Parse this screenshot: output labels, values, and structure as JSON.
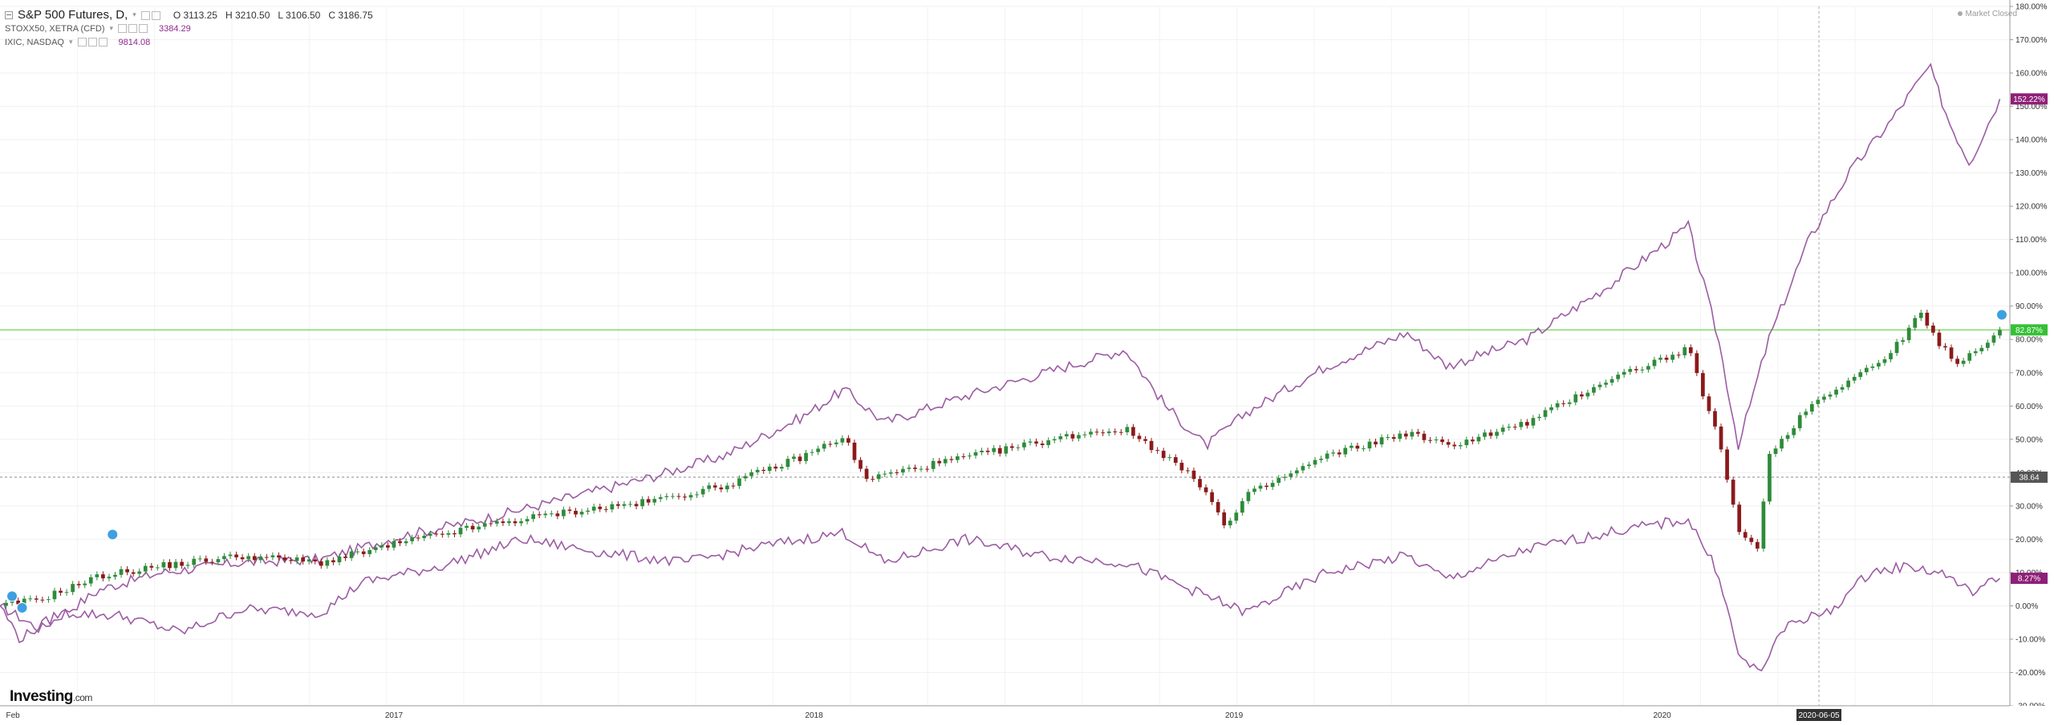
{
  "legend": {
    "main": {
      "symbol": "S&P 500 Futures, D,",
      "open": "O 3113.25",
      "high": "H 3210.50",
      "low": "L 3106.50",
      "close": "C 3186.75"
    },
    "overlays": [
      {
        "name": "STOXX50, XETRA (CFD)",
        "value": "3384.29"
      },
      {
        "name": "IXIC, NASDAQ",
        "value": "9814.08"
      }
    ]
  },
  "status": "Market Closed",
  "logo": {
    "brand": "Investing",
    "suffix": ".com"
  },
  "colors": {
    "purple": "#9c5ca3",
    "candle_up": "#2e8b3a",
    "candle_down": "#8b1a1a",
    "hline": "#7fdc6a",
    "badge_purple": "#8e1f78",
    "badge_green": "#35c135",
    "badge_gray": "#555555",
    "pin": "#3ea0e0"
  },
  "chart_data": {
    "type": "line",
    "title": "",
    "x_tick_labels": [
      "Feb",
      "2017",
      "2018",
      "2019",
      "2020"
    ],
    "x_range": [
      "2016-02",
      "2020-06"
    ],
    "y_range": [
      -30,
      180
    ],
    "y_ticks": [
      "180.00%",
      "170.00%",
      "160.00%",
      "150.00%",
      "140.00%",
      "130.00%",
      "120.00%",
      "110.00%",
      "100.00%",
      "90.00%",
      "80.00%",
      "70.00%",
      "60.00%",
      "50.00%",
      "40.00%",
      "30.00%",
      "20.00%",
      "10.00%",
      "0.00%",
      "-10.00%",
      "-20.00%",
      "-30.00%"
    ],
    "price_badges": [
      {
        "label": "152.22%",
        "value": 152.22,
        "color": "#8e1f78"
      },
      {
        "label": "82.87%",
        "value": 82.87,
        "color": "#35c135"
      },
      {
        "label": "38.64",
        "value": 38.64,
        "color": "#555555"
      },
      {
        "label": "8.27%",
        "value": 8.27,
        "color": "#8e1f78"
      }
    ],
    "crosshair_date_label": "2020-06-05",
    "grid": true,
    "series": [
      {
        "name": "IXIC, NASDAQ",
        "style": "line",
        "color": "#9c5ca3",
        "points": [
          [
            0,
            0
          ],
          [
            0.02,
            -7
          ],
          [
            0.05,
            5
          ],
          [
            0.08,
            10
          ],
          [
            0.12,
            13
          ],
          [
            0.16,
            14
          ],
          [
            0.2,
            21
          ],
          [
            0.24,
            26
          ],
          [
            0.28,
            32
          ],
          [
            0.32,
            38
          ],
          [
            0.36,
            45
          ],
          [
            0.4,
            57
          ],
          [
            0.42,
            65
          ],
          [
            0.44,
            55
          ],
          [
            0.48,
            63
          ],
          [
            0.52,
            70
          ],
          [
            0.56,
            77
          ],
          [
            0.58,
            60
          ],
          [
            0.6,
            48
          ],
          [
            0.62,
            58
          ],
          [
            0.66,
            72
          ],
          [
            0.7,
            82
          ],
          [
            0.72,
            72
          ],
          [
            0.76,
            80
          ],
          [
            0.8,
            96
          ],
          [
            0.84,
            114
          ],
          [
            0.855,
            80
          ],
          [
            0.865,
            48
          ],
          [
            0.88,
            80
          ],
          [
            0.9,
            110
          ],
          [
            0.92,
            130
          ],
          [
            0.94,
            145
          ],
          [
            0.96,
            162
          ],
          [
            0.97,
            145
          ],
          [
            0.98,
            133
          ],
          [
            0.995,
            152.22
          ]
        ]
      },
      {
        "name": "S&P 500 Futures",
        "style": "candles",
        "points": [
          [
            0,
            0
          ],
          [
            0.02,
            2
          ],
          [
            0.05,
            9
          ],
          [
            0.08,
            12
          ],
          [
            0.12,
            15
          ],
          [
            0.16,
            13
          ],
          [
            0.2,
            19
          ],
          [
            0.24,
            24
          ],
          [
            0.28,
            28
          ],
          [
            0.32,
            31
          ],
          [
            0.36,
            36
          ],
          [
            0.4,
            45
          ],
          [
            0.42,
            51
          ],
          [
            0.43,
            38
          ],
          [
            0.46,
            42
          ],
          [
            0.5,
            47
          ],
          [
            0.54,
            52
          ],
          [
            0.56,
            53
          ],
          [
            0.58,
            45
          ],
          [
            0.6,
            35
          ],
          [
            0.61,
            23
          ],
          [
            0.62,
            33
          ],
          [
            0.66,
            45
          ],
          [
            0.7,
            52
          ],
          [
            0.72,
            48
          ],
          [
            0.76,
            55
          ],
          [
            0.8,
            68
          ],
          [
            0.84,
            77
          ],
          [
            0.855,
            50
          ],
          [
            0.865,
            22
          ],
          [
            0.875,
            18
          ],
          [
            0.88,
            45
          ],
          [
            0.9,
            60
          ],
          [
            0.92,
            68
          ],
          [
            0.94,
            75
          ],
          [
            0.955,
            88
          ],
          [
            0.965,
            78
          ],
          [
            0.975,
            73
          ],
          [
            0.995,
            82.87
          ]
        ]
      },
      {
        "name": "STOXX50, XETRA (CFD)",
        "style": "line",
        "color": "#9c5ca3",
        "points": [
          [
            0,
            0
          ],
          [
            0.01,
            -10
          ],
          [
            0.03,
            -2
          ],
          [
            0.06,
            -3
          ],
          [
            0.09,
            -8
          ],
          [
            0.12,
            -1
          ],
          [
            0.16,
            -2
          ],
          [
            0.18,
            7
          ],
          [
            0.22,
            12
          ],
          [
            0.26,
            20
          ],
          [
            0.3,
            16
          ],
          [
            0.34,
            13
          ],
          [
            0.38,
            18
          ],
          [
            0.42,
            22
          ],
          [
            0.44,
            13
          ],
          [
            0.48,
            20
          ],
          [
            0.52,
            15
          ],
          [
            0.56,
            13
          ],
          [
            0.6,
            3
          ],
          [
            0.62,
            -2
          ],
          [
            0.66,
            10
          ],
          [
            0.7,
            15
          ],
          [
            0.72,
            8
          ],
          [
            0.76,
            17
          ],
          [
            0.8,
            22
          ],
          [
            0.84,
            26
          ],
          [
            0.855,
            10
          ],
          [
            0.865,
            -15
          ],
          [
            0.875,
            -20
          ],
          [
            0.89,
            -5
          ],
          [
            0.91,
            -2
          ],
          [
            0.93,
            10
          ],
          [
            0.95,
            12
          ],
          [
            0.97,
            9
          ],
          [
            0.98,
            4
          ],
          [
            0.995,
            8.27
          ]
        ]
      }
    ]
  }
}
